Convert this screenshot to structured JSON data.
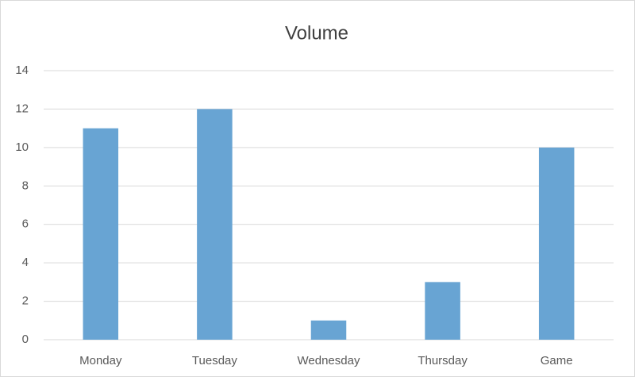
{
  "chart_data": {
    "type": "bar",
    "title": "Volume",
    "categories": [
      "Monday",
      "Tuesday",
      "Wednesday",
      "Thursday",
      "Game"
    ],
    "values": [
      11,
      12,
      1,
      3,
      10
    ],
    "color": "#68a4d3",
    "ylim": [
      0,
      14
    ],
    "yticks": [
      0,
      2,
      4,
      6,
      8,
      10,
      12,
      14
    ],
    "grid": true
  }
}
